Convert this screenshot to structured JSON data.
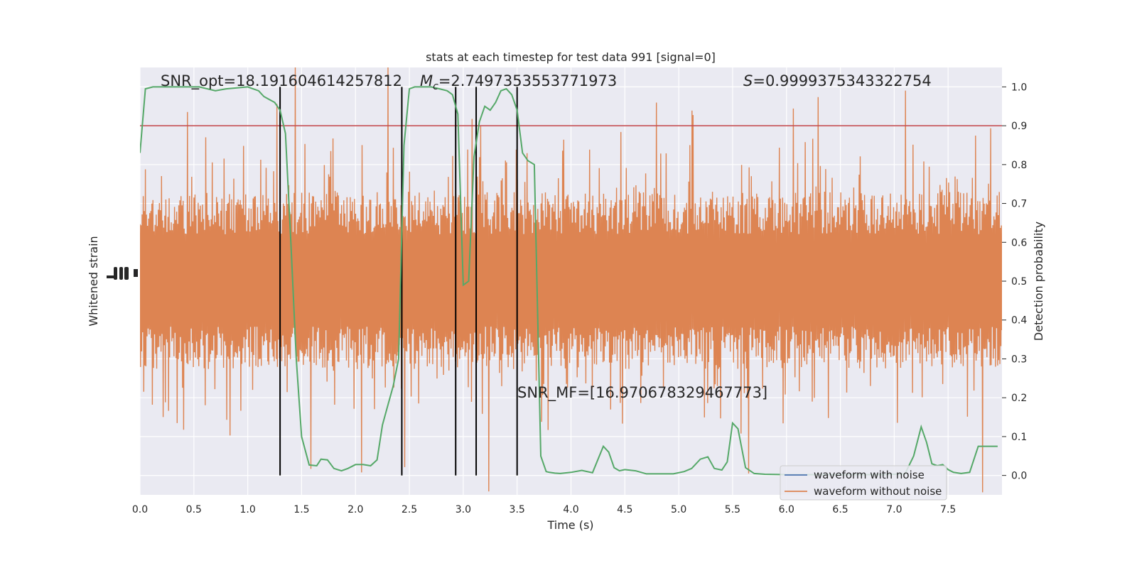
{
  "chart_data": {
    "type": "line",
    "title": "stats at each timestep for test data 991 [signal=0]",
    "xlabel": "Time (s)",
    "ylabel_left": "Whitened strain",
    "ylabel_right": "Detection probability",
    "xlim": [
      0,
      8
    ],
    "ylim_right": [
      -0.05,
      1.05
    ],
    "x_ticks": [
      "0.0",
      "0.5",
      "1.0",
      "1.5",
      "2.0",
      "2.5",
      "3.0",
      "3.5",
      "4.0",
      "4.5",
      "5.0",
      "5.5",
      "6.0",
      "6.5",
      "7.0",
      "7.5"
    ],
    "y_ticks_right": [
      "0.0",
      "0.1",
      "0.2",
      "0.3",
      "0.4",
      "0.5",
      "0.6",
      "0.7",
      "0.8",
      "0.9",
      "1.0"
    ],
    "grid": true,
    "legend_position": "lower-right",
    "threshold": 0.9,
    "vertical_lines": [
      1.3,
      2.43,
      2.93,
      3.12,
      3.5
    ],
    "annotations": {
      "snr_opt": "SNR_opt=18.191604614257812",
      "mc_symbol": "M",
      "mc_sub": "c",
      "mc_value": "=2.7497353553771973",
      "s_symbol": "S",
      "s_value": "=0.9999375343322754",
      "snr_mf": "SNR_MF=[16.970678329467773]"
    },
    "series": [
      {
        "name": "waveform with noise",
        "color": "#4c72b0"
      },
      {
        "name": "waveform without noise",
        "color": "#dd8452"
      }
    ],
    "probability": {
      "color": "#55a868",
      "x": [
        0.0,
        0.05,
        0.12,
        0.2,
        0.35,
        0.55,
        0.7,
        0.8,
        1.0,
        1.1,
        1.15,
        1.25,
        1.3,
        1.35,
        1.4,
        1.45,
        1.5,
        1.57,
        1.64,
        1.68,
        1.74,
        1.8,
        1.87,
        1.93,
        2.0,
        2.07,
        2.14,
        2.2,
        2.25,
        2.3,
        2.35,
        2.4,
        2.45,
        2.5,
        2.55,
        2.62,
        2.7,
        2.78,
        2.85,
        2.9,
        2.95,
        3.0,
        3.05,
        3.1,
        3.15,
        3.2,
        3.25,
        3.3,
        3.35,
        3.4,
        3.45,
        3.5,
        3.55,
        3.6,
        3.66,
        3.72,
        3.77,
        3.8,
        3.85,
        3.9,
        4.0,
        4.1,
        4.2,
        4.3,
        4.35,
        4.4,
        4.45,
        4.5,
        4.6,
        4.7,
        4.8,
        4.95,
        5.05,
        5.12,
        5.2,
        5.27,
        5.33,
        5.4,
        5.45,
        5.5,
        5.55,
        5.62,
        5.7,
        5.8,
        6.0,
        6.3,
        6.6,
        6.9,
        7.1,
        7.18,
        7.25,
        7.3,
        7.35,
        7.4,
        7.45,
        7.5,
        7.55,
        7.62,
        7.7,
        7.78,
        7.85,
        7.9,
        7.96
      ],
      "y": [
        0.83,
        0.995,
        1.0,
        1.0,
        1.0,
        1.0,
        0.99,
        0.995,
        1.0,
        0.99,
        0.975,
        0.96,
        0.94,
        0.88,
        0.6,
        0.3,
        0.1,
        0.027,
        0.025,
        0.042,
        0.04,
        0.018,
        0.012,
        0.018,
        0.028,
        0.028,
        0.025,
        0.04,
        0.13,
        0.18,
        0.23,
        0.3,
        0.85,
        0.995,
        1.0,
        1.0,
        1.0,
        0.995,
        0.99,
        0.98,
        0.93,
        0.49,
        0.5,
        0.82,
        0.91,
        0.95,
        0.94,
        0.96,
        0.99,
        0.995,
        0.98,
        0.94,
        0.83,
        0.81,
        0.8,
        0.05,
        0.01,
        0.008,
        0.006,
        0.005,
        0.008,
        0.013,
        0.007,
        0.075,
        0.06,
        0.02,
        0.012,
        0.015,
        0.012,
        0.004,
        0.004,
        0.004,
        0.01,
        0.018,
        0.042,
        0.048,
        0.018,
        0.014,
        0.035,
        0.135,
        0.12,
        0.02,
        0.005,
        0.003,
        0.002,
        0.002,
        0.002,
        0.002,
        0.004,
        0.05,
        0.125,
        0.085,
        0.03,
        0.025,
        0.028,
        0.015,
        0.008,
        0.005,
        0.008,
        0.075,
        0.075,
        0.075,
        0.075
      ]
    }
  }
}
